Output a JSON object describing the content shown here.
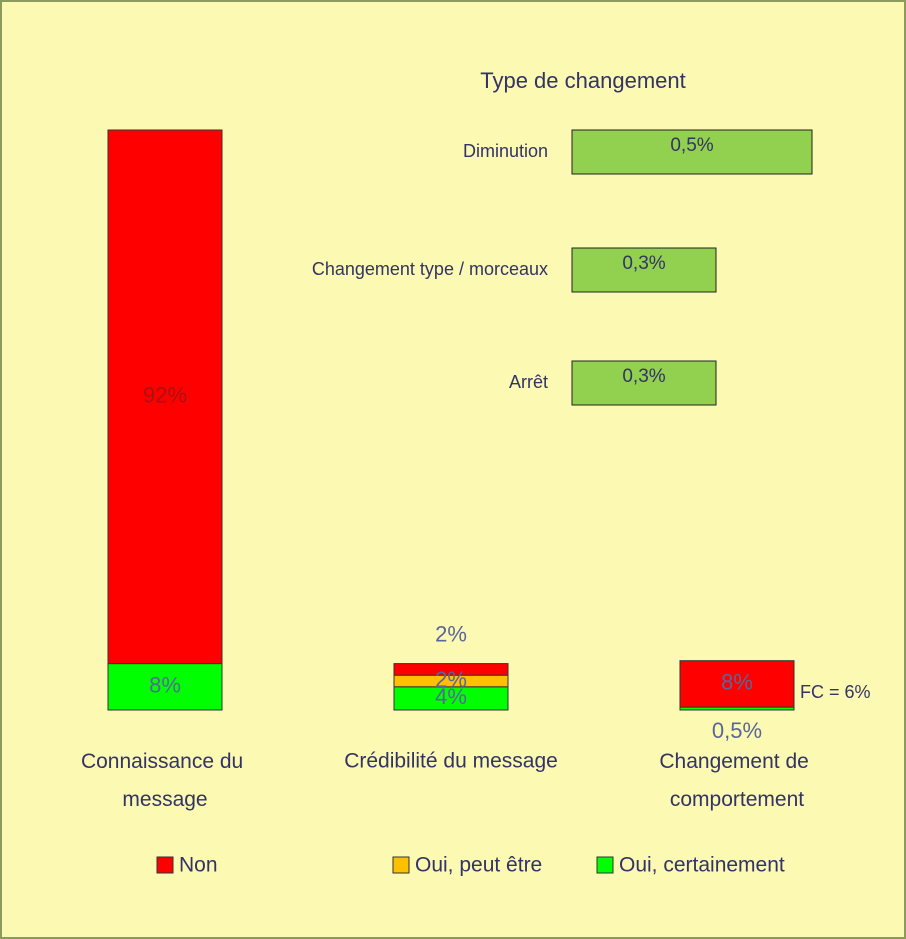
{
  "chart_data": [
    {
      "type": "stacked-bar",
      "categories": [
        "Connaissance du message",
        "Crédibilité du message",
        "Changement de comportement"
      ],
      "series": [
        {
          "name": "Non",
          "color": "#ff0000",
          "values": [
            92,
            2,
            8
          ],
          "value_labels": [
            "92%",
            "2%",
            "8%"
          ]
        },
        {
          "name": "Oui, peut être",
          "color": "#ffc000",
          "values": [
            null,
            2,
            null
          ],
          "value_labels": [
            null,
            "2%",
            null
          ]
        },
        {
          "name": "Oui, certainement",
          "color": "#00ff00",
          "values": [
            8,
            4,
            0.5
          ],
          "value_labels": [
            "8%",
            "4%",
            "0,5%"
          ]
        }
      ],
      "annotation": "FC = 6%",
      "legend": "bottom"
    },
    {
      "type": "barh",
      "title": "Type de changement",
      "categories": [
        "Diminution",
        "Changement type / morceaux",
        "Arrêt"
      ],
      "values": [
        0.5,
        0.3,
        0.3
      ],
      "value_labels": [
        "0,5%",
        "0,3%",
        "0,3%"
      ],
      "color": "#92d050"
    }
  ]
}
